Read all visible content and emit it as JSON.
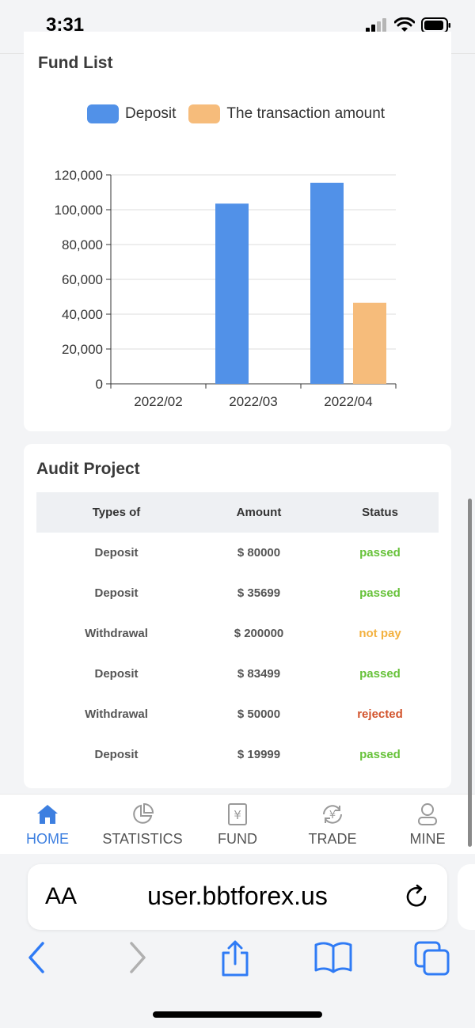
{
  "status_bar": {
    "time": "3:31"
  },
  "fund_list": {
    "title": "Fund List",
    "legend": [
      {
        "label": "Deposit",
        "color": "#5191e8"
      },
      {
        "label": "The transaction amount",
        "color": "#f6bc7b"
      }
    ]
  },
  "chart_data": {
    "type": "bar",
    "categories": [
      "2022/02",
      "2022/03",
      "2022/04"
    ],
    "series": [
      {
        "name": "Deposit",
        "values": [
          0,
          103500,
          115500
        ],
        "color": "#5191e8"
      },
      {
        "name": "The transaction amount",
        "values": [
          0,
          0,
          46500
        ],
        "color": "#f6bc7b"
      }
    ],
    "ylim": [
      0,
      120000
    ],
    "yticks": [
      0,
      20000,
      40000,
      60000,
      80000,
      100000,
      120000
    ],
    "ytick_labels": [
      "0",
      "20,000",
      "40,000",
      "60,000",
      "80,000",
      "100,000",
      "120,000"
    ],
    "grid": true,
    "legend_position": "top"
  },
  "audit": {
    "title": "Audit Project",
    "headers": [
      "Types of",
      "Amount",
      "Status"
    ],
    "rows": [
      {
        "type": "Deposit",
        "amount": "$ 80000",
        "status": "passed",
        "status_color": "#67c23a"
      },
      {
        "type": "Deposit",
        "amount": "$ 35699",
        "status": "passed",
        "status_color": "#67c23a"
      },
      {
        "type": "Withdrawal",
        "amount": "$ 200000",
        "status": "not pay",
        "status_color": "#f3b13f"
      },
      {
        "type": "Deposit",
        "amount": "$ 83499",
        "status": "passed",
        "status_color": "#67c23a"
      },
      {
        "type": "Withdrawal",
        "amount": "$ 50000",
        "status": "rejected",
        "status_color": "#d2532c"
      },
      {
        "type": "Deposit",
        "amount": "$ 19999",
        "status": "passed",
        "status_color": "#67c23a"
      }
    ]
  },
  "tabbar": {
    "items": [
      {
        "label": "HOME",
        "icon": "home-icon",
        "active": true
      },
      {
        "label": "STATISTICS",
        "icon": "pie-chart-icon",
        "active": false
      },
      {
        "label": "FUND",
        "icon": "yen-document-icon",
        "active": false
      },
      {
        "label": "TRADE",
        "icon": "yen-exchange-icon",
        "active": false
      },
      {
        "label": "MINE",
        "icon": "user-icon",
        "active": false
      }
    ]
  },
  "browser": {
    "aa_label": "AA",
    "url": "user.bbtforex.us"
  }
}
